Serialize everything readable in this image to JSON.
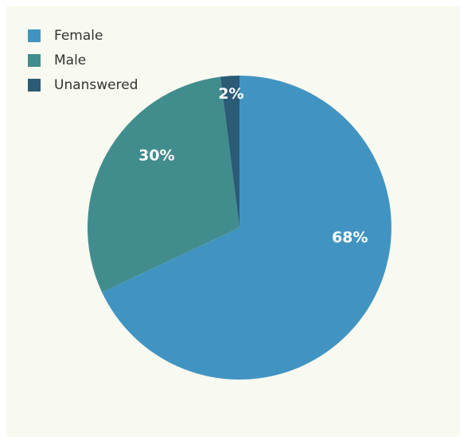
{
  "chart_data": {
    "type": "pie",
    "categories": [
      "Female",
      "Male",
      "Unanswered"
    ],
    "values": [
      68,
      30,
      2
    ],
    "value_labels": [
      "68%",
      "30%",
      "2%"
    ],
    "colors": [
      "#4194c2",
      "#418d8d",
      "#2b5b75"
    ],
    "legend": {
      "entries": [
        "Female",
        "Male",
        "Unanswered"
      ],
      "placement": "top-left"
    },
    "title": ""
  }
}
